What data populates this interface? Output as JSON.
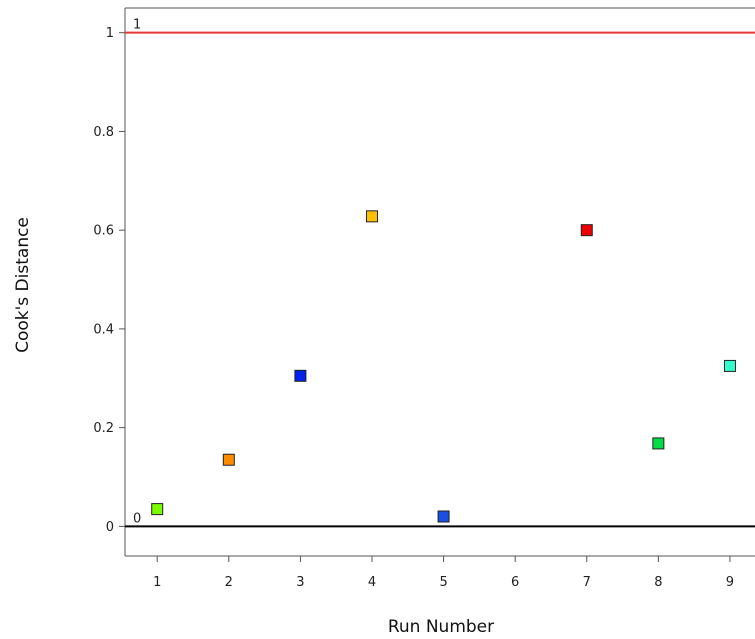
{
  "chart_data": {
    "type": "scatter",
    "xlabel": "Run Number",
    "ylabel": "Cook's Distance",
    "x_ticks": [
      1,
      2,
      3,
      4,
      5,
      6,
      7,
      8,
      9
    ],
    "y_ticks": [
      0,
      0.2,
      0.4,
      0.6,
      0.8,
      1
    ],
    "y_tick_labels": [
      "0",
      "0.2",
      "0.4",
      "0.6",
      "0.8",
      "1"
    ],
    "xlim": [
      0.55,
      9.35
    ],
    "ylim": [
      -0.06,
      1.05
    ],
    "grid": false,
    "reference_lines": [
      {
        "y": 1,
        "label": "1",
        "color": "#e53935"
      },
      {
        "y": 0,
        "label": "0",
        "color": "#000000"
      }
    ],
    "points": [
      {
        "x": 1,
        "y": 0.035,
        "color": "#7cfc00"
      },
      {
        "x": 2,
        "y": 0.135,
        "color": "#ff8c00"
      },
      {
        "x": 3,
        "y": 0.305,
        "color": "#0022ee"
      },
      {
        "x": 4,
        "y": 0.628,
        "color": "#ffc000"
      },
      {
        "x": 5,
        "y": 0.02,
        "color": "#1a4fe0"
      },
      {
        "x": 7,
        "y": 0.6,
        "color": "#ee0000"
      },
      {
        "x": 8,
        "y": 0.168,
        "color": "#00dd44"
      },
      {
        "x": 9,
        "y": 0.325,
        "color": "#33ffcc"
      }
    ]
  }
}
